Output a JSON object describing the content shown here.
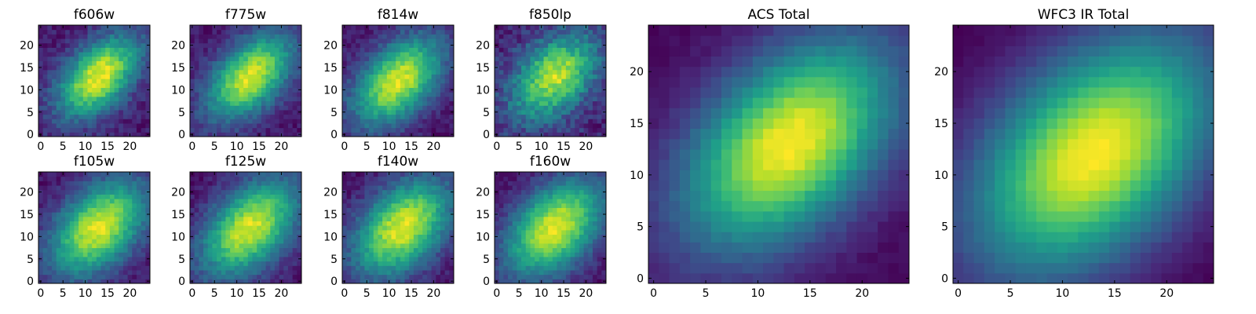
{
  "colormap": [
    "#440154",
    "#482878",
    "#3e4989",
    "#31688e",
    "#26828e",
    "#1f9e89",
    "#35b779",
    "#6ece58",
    "#b5de2b",
    "#fde725"
  ],
  "chart_data": [
    {
      "type": "heatmap",
      "title": "f606w",
      "grid": [
        25,
        25
      ],
      "xlim": [
        0,
        24
      ],
      "ylim": [
        0,
        24
      ],
      "xticks": [
        0,
        5,
        10,
        15,
        20
      ],
      "yticks": [
        0,
        5,
        10,
        15,
        20
      ],
      "peak": [
        13,
        13
      ],
      "sigma_major": 5.5,
      "sigma_minor": 3.2,
      "angle_deg": 45,
      "noise": 0.18
    },
    {
      "type": "heatmap",
      "title": "f775w",
      "grid": [
        25,
        25
      ],
      "xlim": [
        0,
        24
      ],
      "ylim": [
        0,
        24
      ],
      "xticks": [
        0,
        5,
        10,
        15,
        20
      ],
      "yticks": [
        0,
        5,
        10,
        15,
        20
      ],
      "peak": [
        13,
        13
      ],
      "sigma_major": 5.8,
      "sigma_minor": 3.4,
      "angle_deg": 45,
      "noise": 0.16
    },
    {
      "type": "heatmap",
      "title": "f814w",
      "grid": [
        25,
        25
      ],
      "xlim": [
        0,
        24
      ],
      "ylim": [
        0,
        24
      ],
      "xticks": [
        0,
        5,
        10,
        15,
        20
      ],
      "yticks": [
        0,
        5,
        10,
        15,
        20
      ],
      "peak": [
        12,
        12
      ],
      "sigma_major": 6.0,
      "sigma_minor": 3.6,
      "angle_deg": 45,
      "noise": 0.16
    },
    {
      "type": "heatmap",
      "title": "f850lp",
      "grid": [
        25,
        25
      ],
      "xlim": [
        0,
        24
      ],
      "ylim": [
        0,
        24
      ],
      "xticks": [
        0,
        5,
        10,
        15,
        20
      ],
      "yticks": [
        0,
        5,
        10,
        15,
        20
      ],
      "peak": [
        13,
        13
      ],
      "sigma_major": 5.6,
      "sigma_minor": 3.6,
      "angle_deg": 45,
      "noise": 0.28
    },
    {
      "type": "heatmap",
      "title": "f105w",
      "grid": [
        25,
        25
      ],
      "xlim": [
        0,
        24
      ],
      "ylim": [
        0,
        24
      ],
      "xticks": [
        0,
        5,
        10,
        15,
        20
      ],
      "yticks": [
        0,
        5,
        10,
        15,
        20
      ],
      "peak": [
        13,
        12
      ],
      "sigma_major": 6.4,
      "sigma_minor": 4.0,
      "angle_deg": 45,
      "noise": 0.14
    },
    {
      "type": "heatmap",
      "title": "f125w",
      "grid": [
        25,
        25
      ],
      "xlim": [
        0,
        24
      ],
      "ylim": [
        0,
        24
      ],
      "xticks": [
        0,
        5,
        10,
        15,
        20
      ],
      "yticks": [
        0,
        5,
        10,
        15,
        20
      ],
      "peak": [
        13,
        12
      ],
      "sigma_major": 6.6,
      "sigma_minor": 4.0,
      "angle_deg": 45,
      "noise": 0.15
    },
    {
      "type": "heatmap",
      "title": "f140w",
      "grid": [
        25,
        25
      ],
      "xlim": [
        0,
        24
      ],
      "ylim": [
        0,
        24
      ],
      "xticks": [
        0,
        5,
        10,
        15,
        20
      ],
      "yticks": [
        0,
        5,
        10,
        15,
        20
      ],
      "peak": [
        13,
        12
      ],
      "sigma_major": 6.5,
      "sigma_minor": 4.1,
      "angle_deg": 45,
      "noise": 0.15
    },
    {
      "type": "heatmap",
      "title": "f160w",
      "grid": [
        25,
        25
      ],
      "xlim": [
        0,
        24
      ],
      "ylim": [
        0,
        24
      ],
      "xticks": [
        0,
        5,
        10,
        15,
        20
      ],
      "yticks": [
        0,
        5,
        10,
        15,
        20
      ],
      "peak": [
        13,
        12
      ],
      "sigma_major": 6.6,
      "sigma_minor": 4.2,
      "angle_deg": 45,
      "noise": 0.13
    },
    {
      "type": "heatmap",
      "title": "ACS Total",
      "grid": [
        25,
        25
      ],
      "xlim": [
        0,
        24
      ],
      "ylim": [
        0,
        24
      ],
      "xticks": [
        0,
        5,
        10,
        15,
        20
      ],
      "yticks": [
        0,
        5,
        10,
        15,
        20
      ],
      "peak": [
        13,
        13
      ],
      "sigma_major": 6.0,
      "sigma_minor": 3.7,
      "angle_deg": 45,
      "noise": 0.05
    },
    {
      "type": "heatmap",
      "title": "WFC3 IR Total",
      "grid": [
        25,
        25
      ],
      "xlim": [
        0,
        24
      ],
      "ylim": [
        0,
        24
      ],
      "xticks": [
        0,
        5,
        10,
        15,
        20
      ],
      "yticks": [
        0,
        5,
        10,
        15,
        20
      ],
      "peak": [
        13,
        12
      ],
      "sigma_major": 6.8,
      "sigma_minor": 4.3,
      "angle_deg": 45,
      "noise": 0.03
    }
  ]
}
